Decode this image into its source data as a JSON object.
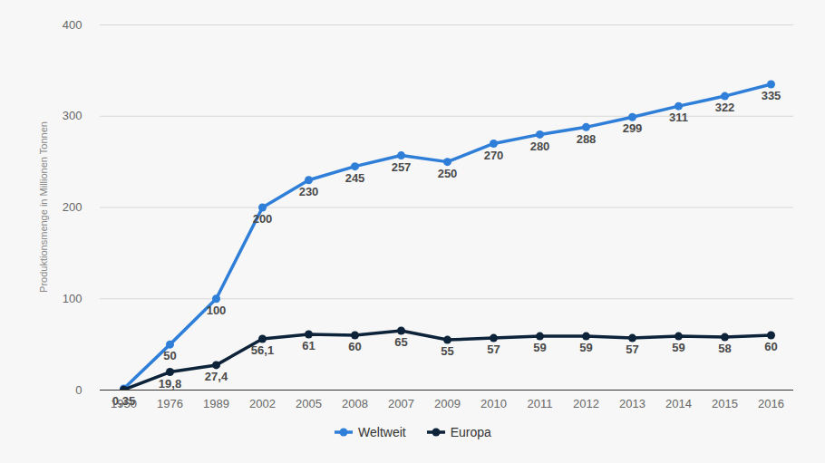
{
  "chart_data": {
    "type": "line",
    "y_label": "Produktionsmenge in Millionen Tonnen",
    "categories": [
      "1950",
      "1976",
      "1989",
      "2002",
      "2005",
      "2008",
      "2007",
      "2009",
      "2010",
      "2011",
      "2012",
      "2013",
      "2014",
      "2015",
      "2016"
    ],
    "series": [
      {
        "name": "Weltweit",
        "color": "#2f7ed8",
        "marker": "circle",
        "values": [
          1.5,
          50,
          100,
          200,
          230,
          245,
          257,
          250,
          270,
          280,
          288,
          299,
          311,
          322,
          335
        ],
        "value_labels": [
          null,
          "50",
          "100",
          "200",
          "230",
          "245",
          "257",
          "250",
          "270",
          "280",
          "288",
          "299",
          "311",
          "322",
          "335"
        ]
      },
      {
        "name": "Europa",
        "color": "#0d233a",
        "marker": "circle",
        "values": [
          0.35,
          19.8,
          27.4,
          56.1,
          61,
          60,
          65,
          55,
          57,
          59,
          59,
          57,
          59,
          58,
          60
        ],
        "value_labels": [
          "0,35",
          "19,8",
          "27,4",
          "56,1",
          "61",
          "60",
          "65",
          "55",
          "57",
          "59",
          "59",
          "57",
          "59",
          "58",
          "60"
        ]
      }
    ],
    "ylim": [
      0,
      400
    ],
    "yticks": [
      0,
      100,
      200,
      300,
      400
    ],
    "grid": true,
    "data_labels": true,
    "legend": "bottom"
  }
}
